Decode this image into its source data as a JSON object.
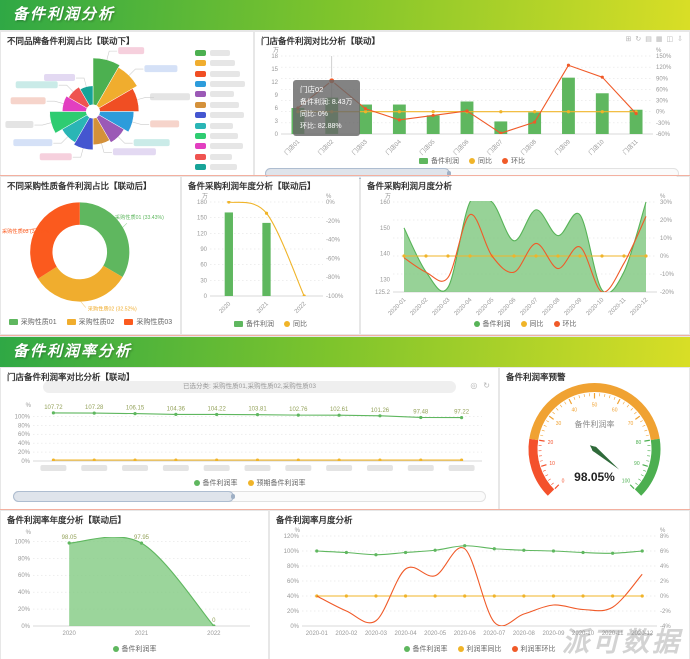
{
  "sections": {
    "profit": "备件利润分析",
    "rate": "备件利润率分析"
  },
  "watermark": "派可数据",
  "toolbox": {
    "icons": [
      "⊞",
      "↻",
      "▤",
      "▦",
      "◫",
      "⇩"
    ]
  },
  "wide_icons": [
    "◎",
    "↻"
  ],
  "panels": {
    "brand_pie": {
      "title": "不同品牌备件利润占比【联动下】"
    },
    "store_profit": {
      "title": "门店备件利润对比分析【联动】",
      "tooltip": {
        "title": "门店02",
        "lines": [
          "备件利润: 8.43万",
          "同比: 0%",
          "环比: 82.88%"
        ]
      }
    },
    "purchase_donut": {
      "title": "不同采购性质备件利润占比【联动后】"
    },
    "year_profit": {
      "title": "备件采购利润年度分析【联动后】"
    },
    "month_profit": {
      "title": "备件采购利润月度分析"
    },
    "store_rate": {
      "title": "门店备件利润率对比分析【联动】",
      "filter": "已选分类: 采购性质01,采购性质02,采购性质03"
    },
    "rate_gauge": {
      "title": "备件利润率预警"
    },
    "year_rate": {
      "title": "备件利润率年度分析【联动后】"
    },
    "month_rate": {
      "title": "备件利润率月度分析"
    }
  },
  "chart_data": [
    {
      "id": "brand-rose",
      "type": "rose",
      "colors": [
        "#4cb050",
        "#f0ad2e",
        "#f04e23",
        "#2d9cdb",
        "#9b59b6",
        "#d4913a",
        "#4456d0",
        "#2ab5b5",
        "#2ecc71",
        "#e23fc0",
        "#ef5350",
        "#17a398"
      ],
      "values": [
        16,
        15,
        13,
        11,
        9,
        8,
        10,
        9,
        12,
        7,
        6,
        5
      ]
    },
    {
      "id": "store-profit",
      "type": "cartesian",
      "categories": [
        "门店01",
        "门店02",
        "门店03",
        "门店04",
        "门店05",
        "门店06",
        "门店07",
        "门店08",
        "门店09",
        "门店10",
        "门店11"
      ],
      "x_rotate": 45,
      "crosshair": 1,
      "grid": "right",
      "margins": {
        "l": 24,
        "r": 34,
        "t": 12,
        "b": 22
      },
      "left_axis": {
        "ticks": [
          0,
          3,
          6,
          9,
          12,
          15,
          18
        ],
        "min": 0,
        "max": 18,
        "unit": "万"
      },
      "right_axis": {
        "ticks": [
          -60,
          -30,
          0,
          30,
          60,
          90,
          120,
          150
        ],
        "min": -60,
        "max": 150,
        "unit": "%",
        "fmt": "pct"
      },
      "series": [
        {
          "name": "备件利润",
          "type": "bar",
          "axis": "left",
          "color": "#5fb75f",
          "values": [
            6,
            8.4,
            6.8,
            6.8,
            4.3,
            7.5,
            2.9,
            5,
            13,
            9.4,
            5.6
          ]
        },
        {
          "name": "同比",
          "type": "line",
          "axis": "right",
          "color": "#f0b429",
          "values": [
            0,
            0,
            0,
            0,
            0,
            0,
            0,
            0,
            0,
            0,
            0
          ]
        },
        {
          "name": "环比",
          "type": "line",
          "axis": "right",
          "color": "#f05a28",
          "big_point": 1,
          "values": [
            10,
            83,
            8,
            -22,
            -10,
            2,
            -58,
            -28,
            125,
            93,
            -5
          ]
        }
      ],
      "legend": [
        {
          "label": "备件利润",
          "color": "#5fb75f",
          "shape": "rect"
        },
        {
          "label": "同比",
          "color": "#f0b429",
          "shape": "circle"
        },
        {
          "label": "环比",
          "color": "#f05a28",
          "shape": "circle"
        }
      ]
    },
    {
      "id": "purchase-donut",
      "type": "donut",
      "items": [
        {
          "label": "采购性质01",
          "pct": 33.43,
          "color": "#5fb75f"
        },
        {
          "label": "采购性质02",
          "pct": 32.52,
          "color": "#f0ad2e"
        },
        {
          "label": "采购性质03",
          "pct": 34.05,
          "color": "#fb5a1e"
        }
      ],
      "legend": [
        {
          "label": "采购性质01",
          "color": "#5fb75f",
          "shape": "rect"
        },
        {
          "label": "采购性质02",
          "color": "#f0ad2e",
          "shape": "rect"
        },
        {
          "label": "采购性质03",
          "color": "#fb5a1e",
          "shape": "rect"
        }
      ]
    },
    {
      "id": "year-profit",
      "type": "cartesian",
      "categories": [
        "2020",
        "2021",
        "2022"
      ],
      "x_rotate": 45,
      "grid": "left",
      "margins": {
        "l": 26,
        "r": 34,
        "t": 12,
        "b": 20
      },
      "left_axis": {
        "ticks": [
          0,
          30,
          60,
          90,
          120,
          150,
          180
        ],
        "min": 0,
        "max": 180,
        "unit": "万"
      },
      "right_axis": {
        "ticks": [
          -100,
          -80,
          -60,
          -40,
          -20,
          0
        ],
        "min": -100,
        "max": 0,
        "unit": "%",
        "fmt": "pct"
      },
      "series": [
        {
          "name": "备件利润",
          "type": "bar",
          "axis": "left",
          "color": "#5fb75f",
          "bw": 0.22,
          "values": [
            160,
            140,
            0
          ]
        },
        {
          "name": "同比",
          "type": "line",
          "axis": "right",
          "color": "#f0b429",
          "smooth": true,
          "values": [
            0,
            -12,
            -100
          ]
        }
      ],
      "legend": [
        {
          "label": "备件利润",
          "color": "#5fb75f",
          "shape": "rect"
        },
        {
          "label": "同比",
          "color": "#f0b429",
          "shape": "circle"
        }
      ]
    },
    {
      "id": "month-profit",
      "type": "cartesian",
      "categories": [
        "2020-01",
        "2020-02",
        "2020-03",
        "2020-04",
        "2020-05",
        "2020-06",
        "2020-07",
        "2020-08",
        "2020-09",
        "2020-10",
        "2020-11",
        "2020-12"
      ],
      "x_rotate": 45,
      "grid": "right",
      "margins": {
        "l": 30,
        "r": 30,
        "t": 12,
        "b": 24
      },
      "left_axis": {
        "ticks": [
          125.2,
          130,
          140,
          150,
          160
        ],
        "min": 125.2,
        "max": 160,
        "unit": "万"
      },
      "right_axis": {
        "ticks": [
          -20,
          -10,
          0,
          10,
          20,
          30
        ],
        "min": -20,
        "max": 30,
        "unit": "%",
        "fmt": "pct"
      },
      "series": [
        {
          "name": "备件利润",
          "type": "area",
          "axis": "left",
          "color": "#57b357",
          "fill": "rgba(125,199,125,0.8)",
          "smooth": true,
          "point": "none",
          "values": [
            150,
            133,
            127,
            160,
            160,
            145,
            157,
            147,
            155,
            126,
            133,
            160
          ]
        },
        {
          "name": "同比",
          "type": "line",
          "axis": "right",
          "color": "#f0b429",
          "values": [
            0,
            0,
            0,
            0,
            0,
            0,
            0,
            0,
            0,
            0,
            0,
            0
          ]
        },
        {
          "name": "环比",
          "type": "line",
          "axis": "right",
          "color": "#f05a28",
          "smooth": true,
          "point": "none",
          "values": [
            -1,
            -9,
            -12,
            23,
            0,
            -9,
            7,
            -7,
            5,
            -20,
            -4,
            22
          ]
        }
      ],
      "legend": [
        {
          "label": "备件利润",
          "color": "#57b357",
          "shape": "circle"
        },
        {
          "label": "同比",
          "color": "#f0b429",
          "shape": "circle"
        },
        {
          "label": "环比",
          "color": "#f05a28",
          "shape": "circle"
        }
      ]
    },
    {
      "id": "store-rate",
      "type": "cartesian",
      "categories": [
        "",
        "",
        "",
        "",
        "",
        "",
        "",
        "",
        "",
        "",
        ""
      ],
      "blur_x": true,
      "grid": "left",
      "margins": {
        "l": 30,
        "r": 14,
        "t": 16,
        "b": 16
      },
      "left_axis": {
        "ticks": [
          0,
          20,
          40,
          60,
          80,
          100
        ],
        "min": 0,
        "max": 112,
        "unit": "%",
        "fmt": "pct"
      },
      "series": [
        {
          "name": "备件利润率",
          "type": "line",
          "axis": "left",
          "color": "#5fb75f",
          "labels": [
            "107.72",
            "107.28",
            "106.15",
            "104.36",
            "104.22",
            "103.81",
            "102.76",
            "102.61",
            "101.26",
            "97.48",
            "97.22"
          ],
          "values": [
            107.72,
            107.28,
            106.15,
            104.36,
            104.22,
            103.81,
            102.76,
            102.61,
            101.26,
            97.48,
            97.22
          ]
        },
        {
          "name": "预期备件利润率",
          "type": "line",
          "axis": "left",
          "color": "#f0b429",
          "values": [
            2,
            2,
            2,
            2,
            2,
            2,
            2,
            2,
            2,
            2,
            2
          ]
        }
      ],
      "legend": [
        {
          "label": "备件利润率",
          "color": "#5fb75f",
          "shape": "circle"
        },
        {
          "label": "预期备件利润率",
          "color": "#f0b429",
          "shape": "circle"
        }
      ]
    },
    {
      "id": "rate-gauge",
      "type": "gauge",
      "min": 0,
      "max": 100,
      "value": 98.05,
      "value_text": "98.05%",
      "label": "备件利润率",
      "zones": [
        {
          "to": 20,
          "color": "#f4512c"
        },
        {
          "to": 80,
          "color": "#f0a232"
        },
        {
          "to": 100,
          "color": "#4caf50"
        }
      ]
    },
    {
      "id": "year-rate",
      "type": "cartesian",
      "categories": [
        "2020",
        "2021",
        "2022"
      ],
      "grid": "left",
      "margins": {
        "l": 30,
        "r": 16,
        "t": 14,
        "b": 16
      },
      "left_axis": {
        "ticks": [
          0,
          20,
          40,
          60,
          80,
          100
        ],
        "min": 0,
        "max": 104,
        "unit": "%",
        "fmt": "pct"
      },
      "series": [
        {
          "name": "备件利润率",
          "type": "area",
          "axis": "left",
          "color": "#5fb75f",
          "fill": "rgba(130,202,130,0.8)",
          "smooth": true,
          "labels": [
            "98.05",
            "97.95",
            "0"
          ],
          "values": [
            98.05,
            97.95,
            0
          ]
        }
      ],
      "legend": [
        {
          "label": "备件利润率",
          "color": "#5fb75f",
          "shape": "circle"
        }
      ]
    },
    {
      "id": "month-rate",
      "type": "cartesian",
      "categories": [
        "2020-01",
        "2020-02",
        "2020-03",
        "2020-04",
        "2020-05",
        "2020-06",
        "2020-07",
        "2020-08",
        "2020-09",
        "2020-10",
        "2020-11",
        "2020-12"
      ],
      "grid": "left",
      "margins": {
        "l": 30,
        "r": 30,
        "t": 12,
        "b": 16
      },
      "left_axis": {
        "ticks": [
          0,
          20,
          40,
          60,
          80,
          100,
          120
        ],
        "min": 0,
        "max": 120,
        "unit": "%",
        "fmt": "pct"
      },
      "right_axis": {
        "ticks": [
          -4,
          -2,
          0,
          2,
          4,
          6,
          8
        ],
        "min": -4,
        "max": 8,
        "unit": "%",
        "fmt": "pct"
      },
      "series": [
        {
          "name": "备件利润率",
          "type": "line",
          "axis": "left",
          "color": "#5fb75f",
          "smooth": true,
          "values": [
            100,
            98,
            95,
            98,
            101,
            107,
            103,
            101,
            100,
            98,
            97,
            100
          ]
        },
        {
          "name": "利润率同比",
          "type": "line",
          "axis": "right",
          "color": "#f0b429",
          "values": [
            0,
            0,
            0,
            0,
            0,
            0,
            0,
            0,
            0,
            0,
            0,
            0
          ]
        },
        {
          "name": "利润率环比",
          "type": "line",
          "axis": "right",
          "color": "#f05a28",
          "smooth": true,
          "point": "none",
          "values": [
            0,
            -2,
            -3.3,
            3.6,
            2.7,
            6.3,
            -3.5,
            -2.4,
            -1.2,
            -1.8,
            -1.5,
            2.9
          ]
        }
      ],
      "legend": [
        {
          "label": "备件利润率",
          "color": "#5fb75f",
          "shape": "circle"
        },
        {
          "label": "利润率同比",
          "color": "#f0b429",
          "shape": "circle"
        },
        {
          "label": "利润率环比",
          "color": "#f05a28",
          "shape": "circle"
        }
      ]
    }
  ]
}
